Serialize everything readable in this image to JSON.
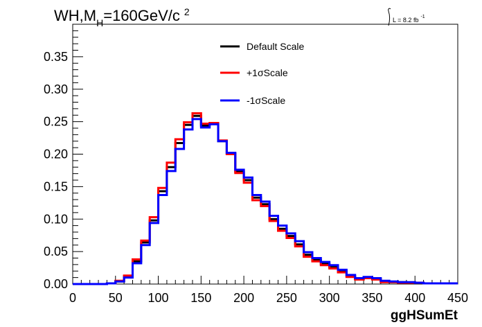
{
  "chart_data": {
    "type": "line",
    "title": "WH,M",
    "title_sub": "H",
    "title_tail": "=160GeV/c",
    "title_sup": "2",
    "lumi_label": "L = 8.2 fb",
    "lumi_sup": "-1",
    "xlabel": "ggHSumEt",
    "ylabel": "",
    "xlim": [
      0,
      450
    ],
    "ylim": [
      0,
      0.4
    ],
    "x_ticks": [
      "0",
      "50",
      "100",
      "150",
      "200",
      "250",
      "300",
      "350",
      "400",
      "450"
    ],
    "y_ticks": [
      "0.00",
      "0.05",
      "0.10",
      "0.15",
      "0.20",
      "0.25",
      "0.30",
      "0.35"
    ],
    "grid": false,
    "legend_position": "top-center",
    "bin_edges": [
      0,
      10,
      20,
      30,
      40,
      50,
      60,
      70,
      80,
      90,
      100,
      110,
      120,
      130,
      140,
      150,
      160,
      170,
      180,
      190,
      200,
      210,
      220,
      230,
      240,
      250,
      260,
      270,
      280,
      290,
      300,
      310,
      320,
      330,
      340,
      350,
      360,
      370,
      380,
      390,
      400,
      410,
      420,
      430,
      440,
      450
    ],
    "series": [
      {
        "name": "Default Scale",
        "color": "#000000",
        "values": [
          0,
          0,
          0,
          0,
          0.001,
          0.004,
          0.012,
          0.035,
          0.064,
          0.098,
          0.143,
          0.18,
          0.217,
          0.245,
          0.259,
          0.244,
          0.247,
          0.22,
          0.201,
          0.173,
          0.16,
          0.133,
          0.123,
          0.1,
          0.085,
          0.074,
          0.061,
          0.045,
          0.037,
          0.031,
          0.026,
          0.02,
          0.012,
          0.008,
          0.01,
          0.008,
          0.004,
          0.003,
          0.003,
          0.002,
          0.002,
          0.001,
          0.001,
          0.001,
          0.001
        ]
      },
      {
        "name": "+1σScale",
        "color": "#ff0000",
        "values": [
          0,
          0,
          0,
          0,
          0.001,
          0.005,
          0.013,
          0.038,
          0.067,
          0.103,
          0.148,
          0.187,
          0.223,
          0.249,
          0.263,
          0.247,
          0.248,
          0.221,
          0.2,
          0.171,
          0.156,
          0.129,
          0.12,
          0.097,
          0.082,
          0.071,
          0.058,
          0.042,
          0.035,
          0.029,
          0.024,
          0.018,
          0.011,
          0.007,
          0.009,
          0.007,
          0.003,
          0.003,
          0.002,
          0.002,
          0.002,
          0.001,
          0.001,
          0.001,
          0.001
        ]
      },
      {
        "name": "-1σScale",
        "color": "#0000ff",
        "values": [
          0,
          0,
          0,
          0,
          0.001,
          0.004,
          0.01,
          0.032,
          0.06,
          0.094,
          0.137,
          0.174,
          0.208,
          0.238,
          0.254,
          0.241,
          0.246,
          0.22,
          0.202,
          0.176,
          0.164,
          0.137,
          0.127,
          0.105,
          0.09,
          0.078,
          0.066,
          0.049,
          0.04,
          0.034,
          0.029,
          0.022,
          0.014,
          0.009,
          0.011,
          0.009,
          0.005,
          0.004,
          0.003,
          0.003,
          0.002,
          0.001,
          0.001,
          0.001,
          0.001
        ]
      }
    ]
  }
}
